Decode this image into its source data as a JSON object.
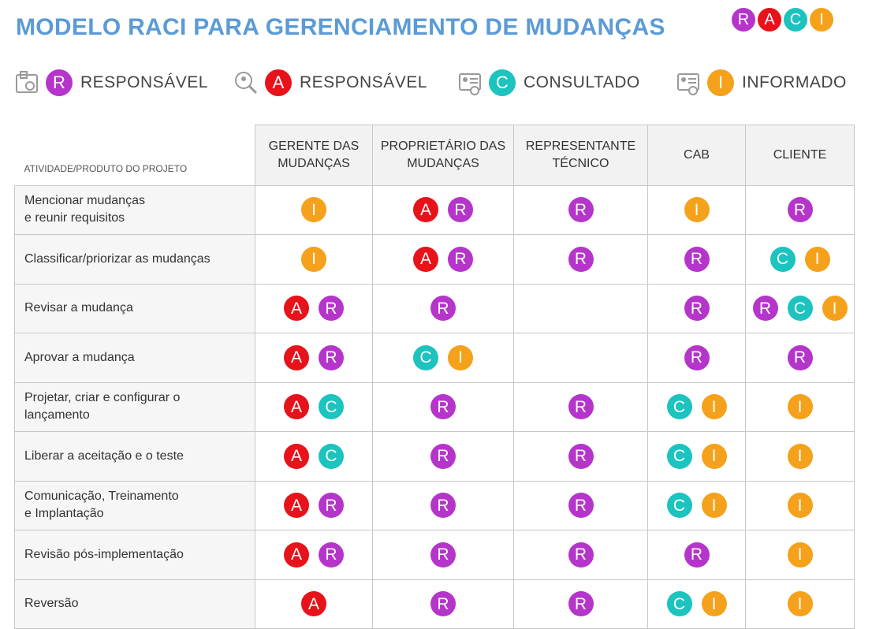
{
  "header": {
    "title": "MODELO RACI PARA GERENCIAMENTO DE MUDANÇAS",
    "logo": [
      "R",
      "A",
      "C",
      "I"
    ]
  },
  "legend": [
    {
      "letter": "R",
      "label": "RESPONSÁVEL",
      "color": "#b535cb"
    },
    {
      "letter": "A",
      "label": "RESPONSÁVEL",
      "color": "#e8121b"
    },
    {
      "letter": "C",
      "label": "CONSULTADO",
      "color": "#1cc3bf"
    },
    {
      "letter": "I",
      "label": "INFORMADO",
      "color": "#f5a11b"
    }
  ],
  "table": {
    "columns": [
      "ATIVIDADE/PRODUTO DO PROJETO",
      "GERENTE DAS\nMUDANÇAS",
      "PROPRIETÁRIO DAS\nMUDANÇAS",
      "REPRESENTANTE\nTÉCNICO",
      "CAB",
      "CLIENTE"
    ],
    "rows": [
      [
        "Mencionar mudanças\ne reunir requisitos",
        [
          "I"
        ],
        [
          "A",
          "R"
        ],
        [
          "R"
        ],
        [
          "I"
        ],
        [
          "R"
        ]
      ],
      [
        "Classificar/priorizar as mudanças",
        [
          "I"
        ],
        [
          "A",
          "R"
        ],
        [
          "R"
        ],
        [
          "R"
        ],
        [
          "C",
          "I"
        ]
      ],
      [
        "Revisar a mudança",
        [
          "A",
          "R"
        ],
        [
          "R"
        ],
        [],
        [
          "R"
        ],
        [
          "R",
          "C",
          "I"
        ]
      ],
      [
        "Aprovar a mudança",
        [
          "A",
          "R"
        ],
        [
          "C",
          "I"
        ],
        [],
        [
          "R"
        ],
        [
          "R"
        ]
      ],
      [
        "Projetar, criar e configurar o\nlançamento",
        [
          "A",
          "C"
        ],
        [
          "R"
        ],
        [
          "R"
        ],
        [
          "C",
          "I"
        ],
        [
          "I"
        ]
      ],
      [
        "Liberar a aceitação e o teste",
        [
          "A",
          "C"
        ],
        [
          "R"
        ],
        [
          "R"
        ],
        [
          "C",
          "I"
        ],
        [
          "I"
        ]
      ],
      [
        "Comunicação, Treinamento\ne Implantação",
        [
          "A",
          "R"
        ],
        [
          "R"
        ],
        [
          "R"
        ],
        [
          "C",
          "I"
        ],
        [
          "I"
        ]
      ],
      [
        "Revisão pós-implementação",
        [
          "A",
          "R"
        ],
        [
          "R"
        ],
        [
          "R"
        ],
        [
          "R"
        ],
        [
          "I"
        ]
      ],
      [
        "Reversão",
        [
          "A"
        ],
        [
          "R"
        ],
        [
          "R"
        ],
        [
          "C",
          "I"
        ],
        [
          "I"
        ]
      ]
    ]
  }
}
